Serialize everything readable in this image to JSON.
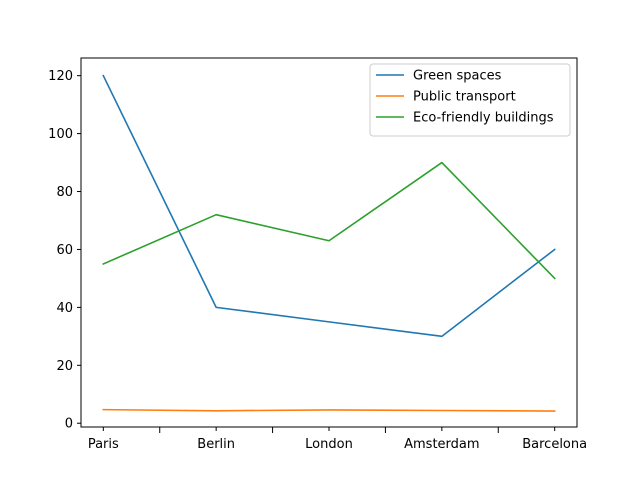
{
  "chart_data": {
    "type": "line",
    "categories": [
      "Paris",
      "Berlin",
      "London",
      "Amsterdam",
      "Barcelona"
    ],
    "series": [
      {
        "name": "Green spaces",
        "color": "#1f77b4",
        "values": [
          120,
          40,
          35,
          30,
          60
        ]
      },
      {
        "name": "Public transport",
        "color": "#ff7f0e",
        "values": [
          4.7,
          4.3,
          4.6,
          4.4,
          4.2
        ]
      },
      {
        "name": "Eco-friendly buildings",
        "color": "#2ca02c",
        "values": [
          55,
          72,
          63,
          90,
          50
        ]
      }
    ],
    "y_ticks": [
      0,
      20,
      40,
      60,
      80,
      100,
      120
    ],
    "ylim": [
      -1.3,
      126.1
    ],
    "grid": false,
    "legend_position": "upper-right",
    "title": "",
    "xlabel": "",
    "ylabel": ""
  }
}
